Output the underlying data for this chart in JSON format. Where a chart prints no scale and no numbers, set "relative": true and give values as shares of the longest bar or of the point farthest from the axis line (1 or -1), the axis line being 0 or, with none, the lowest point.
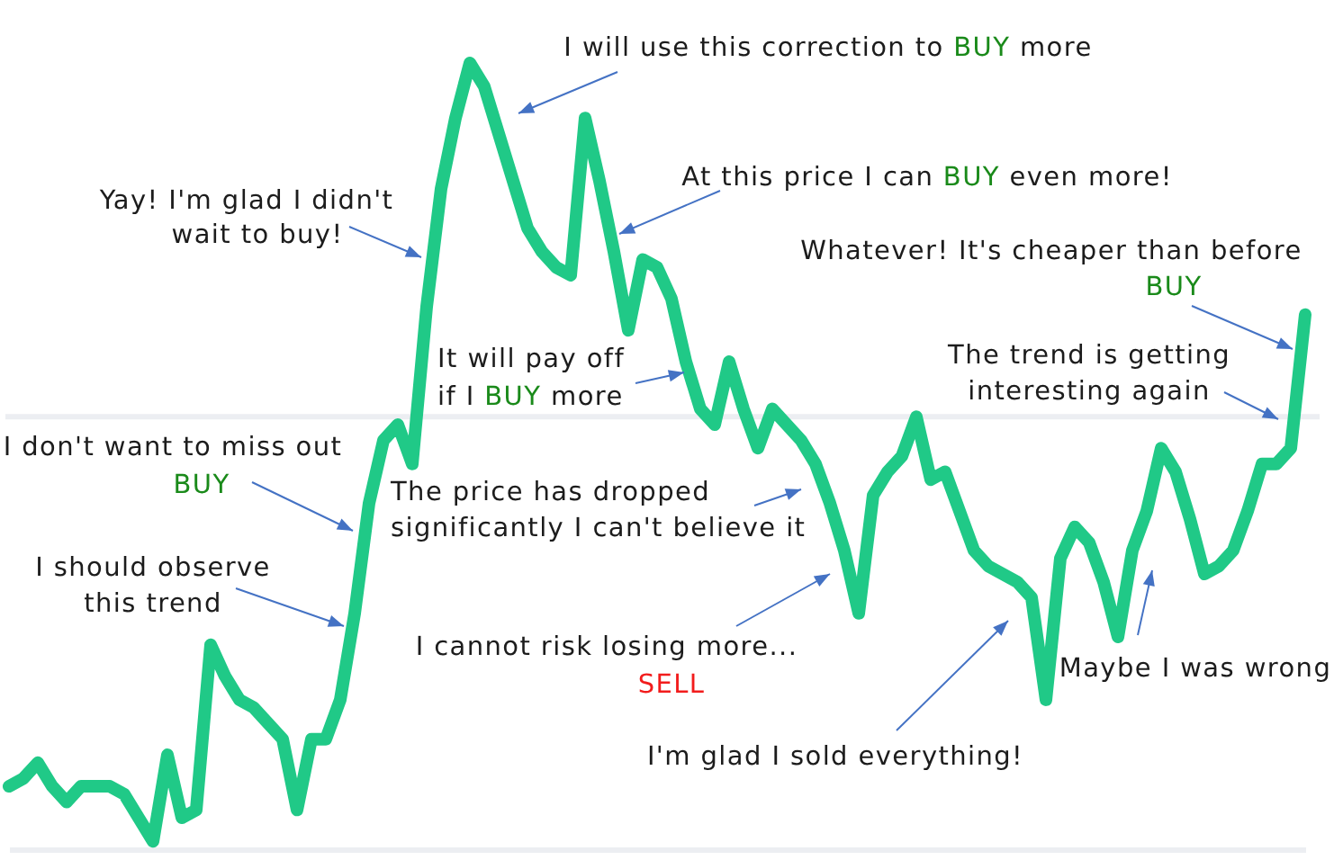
{
  "chart_data": {
    "type": "line",
    "relative": true,
    "categories": [
      null,
      null,
      null,
      null,
      null,
      null,
      null,
      null,
      null,
      null,
      null,
      null,
      null,
      null,
      null,
      null,
      null,
      null,
      null,
      null,
      null,
      null,
      null,
      null,
      null,
      null,
      null,
      null,
      null,
      null,
      null,
      null,
      null,
      null,
      null,
      null,
      null,
      null,
      null,
      null,
      null,
      null,
      null,
      null,
      null,
      null,
      null,
      null,
      null,
      null,
      null,
      null,
      null,
      null,
      null,
      null,
      null,
      null,
      null,
      null,
      null,
      null,
      null,
      null,
      null,
      null,
      null,
      null,
      null,
      null,
      null,
      null,
      null,
      null,
      null,
      null,
      null,
      null,
      null,
      null,
      null,
      null,
      null,
      null,
      null,
      null,
      null,
      null,
      null,
      null,
      null
    ],
    "series": [
      {
        "color": "#20c987",
        "values": [
          0.08,
          0.09,
          0.11,
          0.08,
          0.06,
          0.08,
          0.08,
          0.08,
          0.07,
          0.04,
          0.01,
          0.12,
          0.04,
          0.05,
          0.26,
          0.22,
          0.19,
          0.18,
          0.16,
          0.14,
          0.05,
          0.14,
          0.14,
          0.19,
          0.3,
          0.44,
          0.52,
          0.54,
          0.49,
          0.69,
          0.84,
          0.93,
          1,
          0.97,
          0.91,
          0.85,
          0.79,
          0.76,
          0.74,
          0.73,
          0.93,
          0.85,
          0.76,
          0.66,
          0.75,
          0.74,
          0.7,
          0.62,
          0.56,
          0.54,
          0.62,
          0.56,
          0.51,
          0.56,
          0.54,
          0.52,
          0.49,
          0.44,
          0.38,
          0.3,
          0.45,
          0.48,
          0.5,
          0.55,
          0.47,
          0.48,
          0.43,
          0.38,
          0.36,
          0.35,
          0.34,
          0.32,
          0.19,
          0.37,
          0.41,
          0.39,
          0.34,
          0.27,
          0.38,
          0.43,
          0.51,
          0.48,
          0.42,
          0.35,
          0.36,
          0.38,
          0.43,
          0.49,
          0.49,
          0.51,
          0.68
        ]
      }
    ],
    "ref_lines": [
      {
        "axis": "y",
        "value": 0.55,
        "color": "#eceef2"
      }
    ],
    "annotations": [
      "I will use this correction to BUY more",
      "At this price I can BUY even more!",
      "Yay! I'm glad I didn't wait to buy!",
      "Whatever! It's cheaper than before BUY",
      "It will pay off if I BUY more",
      "The trend is getting interesting again",
      "I don't want to miss out BUY",
      "The price has dropped significantly I can't believe it",
      "I should observe this trend",
      "I cannot risk losing more... SELL",
      "Maybe I was wrong",
      "I'm glad I sold everything!"
    ]
  }
}
